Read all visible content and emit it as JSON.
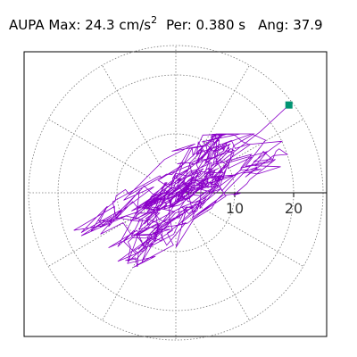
{
  "chart_data": {
    "type": "scatter",
    "title": "AUPA  Max:  24.3 cm/s",
    "title_superscript": "2",
    "period_label": "Per:  0.380 s",
    "angle_label": "Ang:  37.9",
    "station": "AUPA",
    "max_value": 24.3,
    "max_units": "cm/s^2",
    "period_s": 0.38,
    "angle_deg": 37.9,
    "polar_grid": true,
    "ring_radii": [
      10,
      20
    ],
    "tick_labels": [
      "10",
      "20"
    ],
    "axis_max": 25,
    "spoke_angles_deg": [
      0,
      30,
      60,
      90,
      120,
      150,
      180,
      210,
      240,
      270,
      300,
      330
    ],
    "trajectory_color": "#8a00c8",
    "peak_marker_color": "#009473",
    "peak_point": {
      "x": 19.2,
      "y": 14.9
    }
  }
}
